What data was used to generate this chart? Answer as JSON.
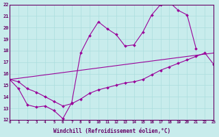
{
  "xlabel": "Windchill (Refroidissement éolien,°C)",
  "bg_color": "#c8ecec",
  "line_color": "#990099",
  "xmin": 0,
  "xmax": 23,
  "ymin": 12,
  "ymax": 22,
  "line1_x": [
    0,
    1,
    2,
    3,
    4,
    5,
    6,
    7,
    8,
    9,
    10,
    11,
    12,
    13,
    14,
    15,
    16,
    17,
    18,
    19,
    20,
    21,
    22,
    23
  ],
  "line1_y": [
    15.5,
    15.6,
    15.7,
    15.8,
    15.9,
    16.0,
    16.1,
    16.2,
    16.3,
    16.4,
    16.5,
    16.6,
    16.7,
    16.8,
    16.9,
    17.0,
    17.1,
    17.2,
    17.3,
    17.4,
    17.5,
    17.6,
    17.7,
    17.8
  ],
  "line2_x": [
    0,
    1,
    2,
    3,
    4,
    5,
    6,
    7,
    8,
    9,
    10,
    11,
    12,
    13,
    14,
    15,
    16,
    17,
    18,
    19,
    20,
    21,
    22,
    23
  ],
  "line2_y": [
    15.5,
    15.3,
    14.7,
    14.4,
    14.0,
    13.6,
    13.2,
    13.4,
    13.8,
    14.3,
    14.6,
    14.8,
    15.0,
    15.2,
    15.3,
    15.5,
    15.9,
    16.3,
    16.6,
    16.9,
    17.2,
    17.5,
    17.8,
    16.8
  ],
  "line3_x": [
    0,
    1,
    2,
    3,
    4,
    5,
    6,
    7,
    8,
    9,
    10,
    11,
    12,
    13,
    14,
    15,
    16,
    17,
    18,
    19,
    20,
    21
  ],
  "line3_y": [
    15.5,
    14.7,
    13.3,
    13.1,
    13.2,
    12.8,
    12.1,
    13.5,
    17.8,
    19.3,
    20.5,
    19.9,
    19.4,
    18.4,
    18.5,
    19.6,
    21.1,
    22.0,
    22.2,
    21.5,
    21.1,
    18.2
  ]
}
